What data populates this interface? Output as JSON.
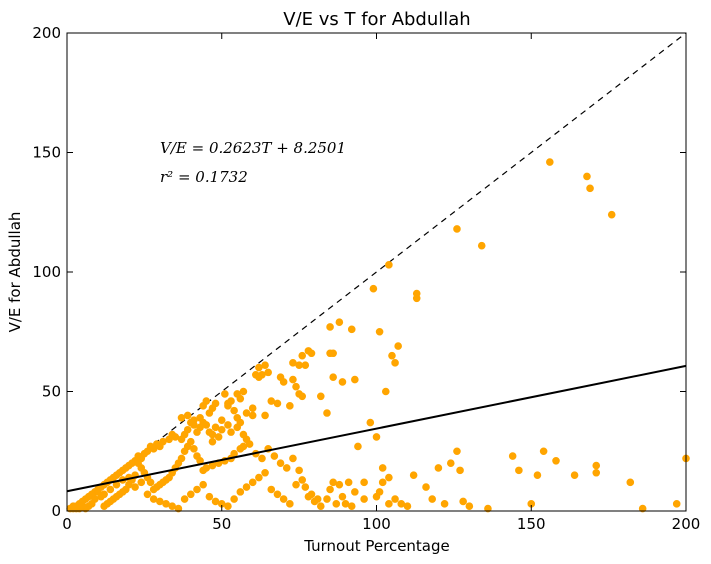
{
  "chart_data": {
    "type": "scatter",
    "title": "V/E vs T for Abdullah",
    "xlabel": "Turnout Percentage",
    "ylabel": "V/E for Abdullah",
    "xlim": [
      0,
      200
    ],
    "ylim": [
      0,
      200
    ],
    "xticks": [
      "0",
      "50",
      "100",
      "150",
      "200"
    ],
    "yticks": [
      "0",
      "50",
      "100",
      "150",
      "200"
    ],
    "grid": false,
    "annotations": {
      "equation": "V/E = 0.2623T + 8.2501",
      "r2": "r² = 0.1732"
    },
    "point_color": "#FFA500",
    "fit_line": {
      "slope": 0.2623,
      "intercept": 8.2501,
      "color": "#000000"
    },
    "reference_line": {
      "slope": 1,
      "intercept": 0,
      "style": "dashed",
      "color": "#000000"
    },
    "points": [
      [
        156,
        146
      ],
      [
        168,
        140
      ],
      [
        169,
        135
      ],
      [
        176,
        124
      ],
      [
        126,
        118
      ],
      [
        134,
        111
      ],
      [
        104,
        103
      ],
      [
        113,
        91
      ],
      [
        113,
        89
      ],
      [
        99,
        93
      ],
      [
        88,
        79
      ],
      [
        85,
        77
      ],
      [
        92,
        76
      ],
      [
        101,
        75
      ],
      [
        107,
        69
      ],
      [
        105,
        65
      ],
      [
        106,
        62
      ],
      [
        85,
        66
      ],
      [
        86,
        66
      ],
      [
        78,
        67
      ],
      [
        79,
        66
      ],
      [
        76,
        65
      ],
      [
        77,
        61
      ],
      [
        73,
        62
      ],
      [
        75,
        61
      ],
      [
        64,
        61
      ],
      [
        62,
        60
      ],
      [
        65,
        58
      ],
      [
        63,
        57
      ],
      [
        61,
        57
      ],
      [
        62,
        56
      ],
      [
        73,
        55
      ],
      [
        69,
        56
      ],
      [
        70,
        54
      ],
      [
        86,
        56
      ],
      [
        89,
        54
      ],
      [
        93,
        55
      ],
      [
        74,
        52
      ],
      [
        75,
        49
      ],
      [
        76,
        48
      ],
      [
        82,
        48
      ],
      [
        84,
        41
      ],
      [
        66,
        46
      ],
      [
        68,
        45
      ],
      [
        72,
        44
      ],
      [
        64,
        40
      ],
      [
        60,
        43
      ],
      [
        56,
        47
      ],
      [
        57,
        50
      ],
      [
        55,
        49
      ],
      [
        53,
        46
      ],
      [
        52,
        45
      ],
      [
        51,
        49
      ],
      [
        52,
        44
      ],
      [
        48,
        45
      ],
      [
        47,
        43
      ],
      [
        44,
        44
      ],
      [
        45,
        46
      ],
      [
        46,
        41
      ],
      [
        103,
        50
      ],
      [
        58,
        41
      ],
      [
        60,
        40
      ],
      [
        56,
        37
      ],
      [
        55,
        35
      ],
      [
        52,
        36
      ],
      [
        53,
        33
      ],
      [
        50,
        34
      ],
      [
        48,
        35
      ],
      [
        47,
        32
      ],
      [
        44,
        37
      ],
      [
        43,
        35
      ],
      [
        41,
        36
      ],
      [
        42,
        33
      ],
      [
        40,
        37
      ],
      [
        39,
        34
      ],
      [
        38,
        32
      ],
      [
        37,
        30
      ],
      [
        35,
        31
      ],
      [
        34,
        32
      ],
      [
        33,
        30
      ],
      [
        31,
        29
      ],
      [
        30,
        27
      ],
      [
        29,
        28
      ],
      [
        28,
        26
      ],
      [
        27,
        27
      ],
      [
        26,
        25
      ],
      [
        25,
        24
      ],
      [
        24,
        22
      ],
      [
        23,
        23
      ],
      [
        22,
        21
      ],
      [
        21,
        20
      ],
      [
        20,
        19
      ],
      [
        19,
        18
      ],
      [
        18,
        17
      ],
      [
        17,
        16
      ],
      [
        16,
        15
      ],
      [
        15,
        14
      ],
      [
        14,
        13
      ],
      [
        13,
        12
      ],
      [
        12,
        11
      ],
      [
        11,
        10
      ],
      [
        10,
        9
      ],
      [
        9,
        8
      ],
      [
        8,
        7
      ],
      [
        7,
        6
      ],
      [
        6,
        5
      ],
      [
        5,
        4
      ],
      [
        4,
        3
      ],
      [
        3,
        2
      ],
      [
        2,
        1
      ],
      [
        1,
        1
      ],
      [
        58,
        30
      ],
      [
        57,
        27
      ],
      [
        56,
        26
      ],
      [
        54,
        24
      ],
      [
        53,
        22
      ],
      [
        51,
        21
      ],
      [
        49,
        20
      ],
      [
        47,
        19
      ],
      [
        45,
        18
      ],
      [
        44,
        17
      ],
      [
        43,
        21
      ],
      [
        42,
        23
      ],
      [
        41,
        26
      ],
      [
        40,
        29
      ],
      [
        39,
        27
      ],
      [
        38,
        25
      ],
      [
        37,
        22
      ],
      [
        36,
        20
      ],
      [
        35,
        18
      ],
      [
        34,
        16
      ],
      [
        33,
        14
      ],
      [
        32,
        13
      ],
      [
        31,
        12
      ],
      [
        30,
        11
      ],
      [
        29,
        10
      ],
      [
        28,
        9
      ],
      [
        27,
        12
      ],
      [
        26,
        14
      ],
      [
        25,
        16
      ],
      [
        24,
        18
      ],
      [
        23,
        20
      ],
      [
        22,
        15
      ],
      [
        21,
        13
      ],
      [
        20,
        11
      ],
      [
        19,
        9
      ],
      [
        18,
        8
      ],
      [
        17,
        7
      ],
      [
        16,
        6
      ],
      [
        15,
        5
      ],
      [
        14,
        4
      ],
      [
        13,
        3
      ],
      [
        12,
        2
      ],
      [
        11,
        6
      ],
      [
        10,
        8
      ],
      [
        9,
        5
      ],
      [
        8,
        3
      ],
      [
        7,
        2
      ],
      [
        6,
        1
      ],
      [
        5,
        2
      ],
      [
        4,
        1
      ],
      [
        3,
        1
      ],
      [
        2,
        2
      ],
      [
        12,
        7
      ],
      [
        14,
        9
      ],
      [
        16,
        11
      ],
      [
        18,
        13
      ],
      [
        20,
        14
      ],
      [
        22,
        10
      ],
      [
        24,
        12
      ],
      [
        26,
        7
      ],
      [
        28,
        5
      ],
      [
        30,
        4
      ],
      [
        32,
        3
      ],
      [
        34,
        2
      ],
      [
        36,
        1
      ],
      [
        38,
        5
      ],
      [
        40,
        7
      ],
      [
        42,
        9
      ],
      [
        44,
        11
      ],
      [
        46,
        6
      ],
      [
        48,
        4
      ],
      [
        50,
        3
      ],
      [
        52,
        2
      ],
      [
        54,
        5
      ],
      [
        56,
        8
      ],
      [
        58,
        10
      ],
      [
        60,
        12
      ],
      [
        62,
        14
      ],
      [
        64,
        16
      ],
      [
        66,
        9
      ],
      [
        68,
        7
      ],
      [
        70,
        5
      ],
      [
        72,
        3
      ],
      [
        74,
        11
      ],
      [
        76,
        13
      ],
      [
        78,
        6
      ],
      [
        80,
        4
      ],
      [
        82,
        2
      ],
      [
        84,
        5
      ],
      [
        86,
        12
      ],
      [
        88,
        11
      ],
      [
        90,
        3
      ],
      [
        92,
        2
      ],
      [
        94,
        27
      ],
      [
        96,
        12
      ],
      [
        98,
        37
      ],
      [
        100,
        31
      ],
      [
        100,
        6
      ],
      [
        102,
        18
      ],
      [
        104,
        14
      ],
      [
        106,
        5
      ],
      [
        108,
        3
      ],
      [
        110,
        2
      ],
      [
        112,
        15
      ],
      [
        116,
        10
      ],
      [
        118,
        5
      ],
      [
        120,
        18
      ],
      [
        122,
        3
      ],
      [
        124,
        20
      ],
      [
        126,
        25
      ],
      [
        127,
        17
      ],
      [
        128,
        4
      ],
      [
        130,
        2
      ],
      [
        136,
        1
      ],
      [
        144,
        23
      ],
      [
        146,
        17
      ],
      [
        150,
        3
      ],
      [
        152,
        15
      ],
      [
        154,
        25
      ],
      [
        158,
        21
      ],
      [
        164,
        15
      ],
      [
        171,
        19
      ],
      [
        171,
        16
      ],
      [
        182,
        12
      ],
      [
        186,
        1
      ],
      [
        197,
        3
      ],
      [
        200,
        22
      ],
      [
        101,
        8
      ],
      [
        102,
        12
      ],
      [
        104,
        3
      ],
      [
        96,
        5
      ],
      [
        93,
        8
      ],
      [
        91,
        12
      ],
      [
        89,
        6
      ],
      [
        87,
        3
      ],
      [
        85,
        9
      ],
      [
        81,
        5
      ],
      [
        79,
        7
      ],
      [
        77,
        10
      ],
      [
        75,
        17
      ],
      [
        73,
        22
      ],
      [
        71,
        18
      ],
      [
        69,
        20
      ],
      [
        67,
        23
      ],
      [
        65,
        26
      ],
      [
        63,
        22
      ],
      [
        61,
        24
      ],
      [
        59,
        28
      ],
      [
        57,
        32
      ],
      [
        55,
        39
      ],
      [
        54,
        42
      ],
      [
        50,
        38
      ],
      [
        49,
        31
      ],
      [
        47,
        29
      ],
      [
        46,
        33
      ],
      [
        45,
        36
      ],
      [
        43,
        39
      ],
      [
        41,
        38
      ],
      [
        39,
        40
      ],
      [
        37,
        39
      ]
    ]
  }
}
